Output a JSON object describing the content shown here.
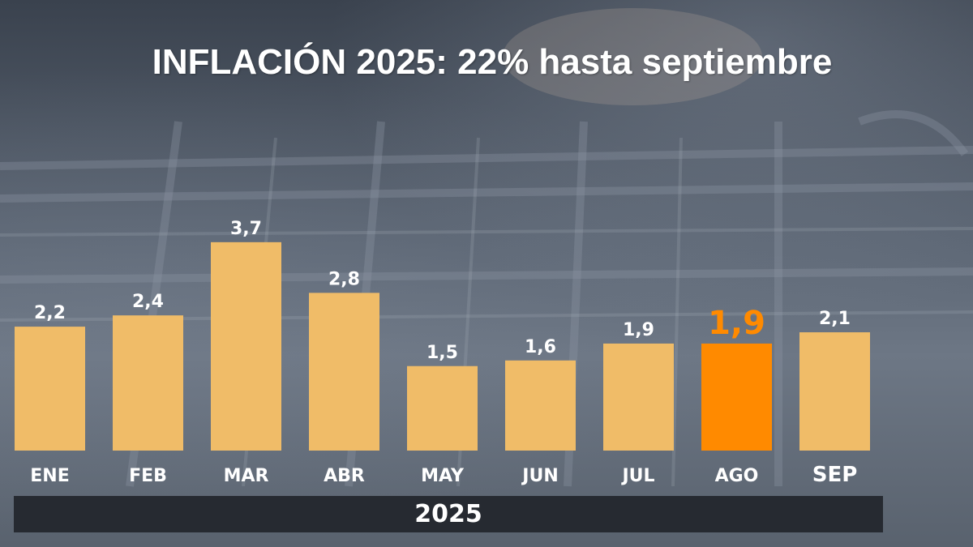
{
  "title": "INFLACIÓN 2025: 22% hasta septiembre",
  "colors": {
    "bar": "#f0bc68",
    "highlight_bar": "#ff8a00",
    "value_label": "#ffffff",
    "highlight_label": "#ff8a00",
    "year_band": "#262a31"
  },
  "chart_data": {
    "type": "bar",
    "title": "INFLACIÓN 2025: 22% hasta septiembre",
    "categories": [
      "ENE",
      "FEB",
      "MAR",
      "ABR",
      "MAY",
      "JUN",
      "JUL",
      "AGO",
      "SEP"
    ],
    "values": [
      2.2,
      2.4,
      3.7,
      2.8,
      1.5,
      1.6,
      1.9,
      1.9,
      2.1
    ],
    "value_labels": [
      "2,2",
      "2,4",
      "3,7",
      "2,8",
      "1,5",
      "1,6",
      "1,9",
      "1,9",
      "2,1"
    ],
    "highlight_category": "AGO",
    "xlabel": "2025",
    "ylabel": "",
    "grid": false,
    "legend": "none"
  }
}
